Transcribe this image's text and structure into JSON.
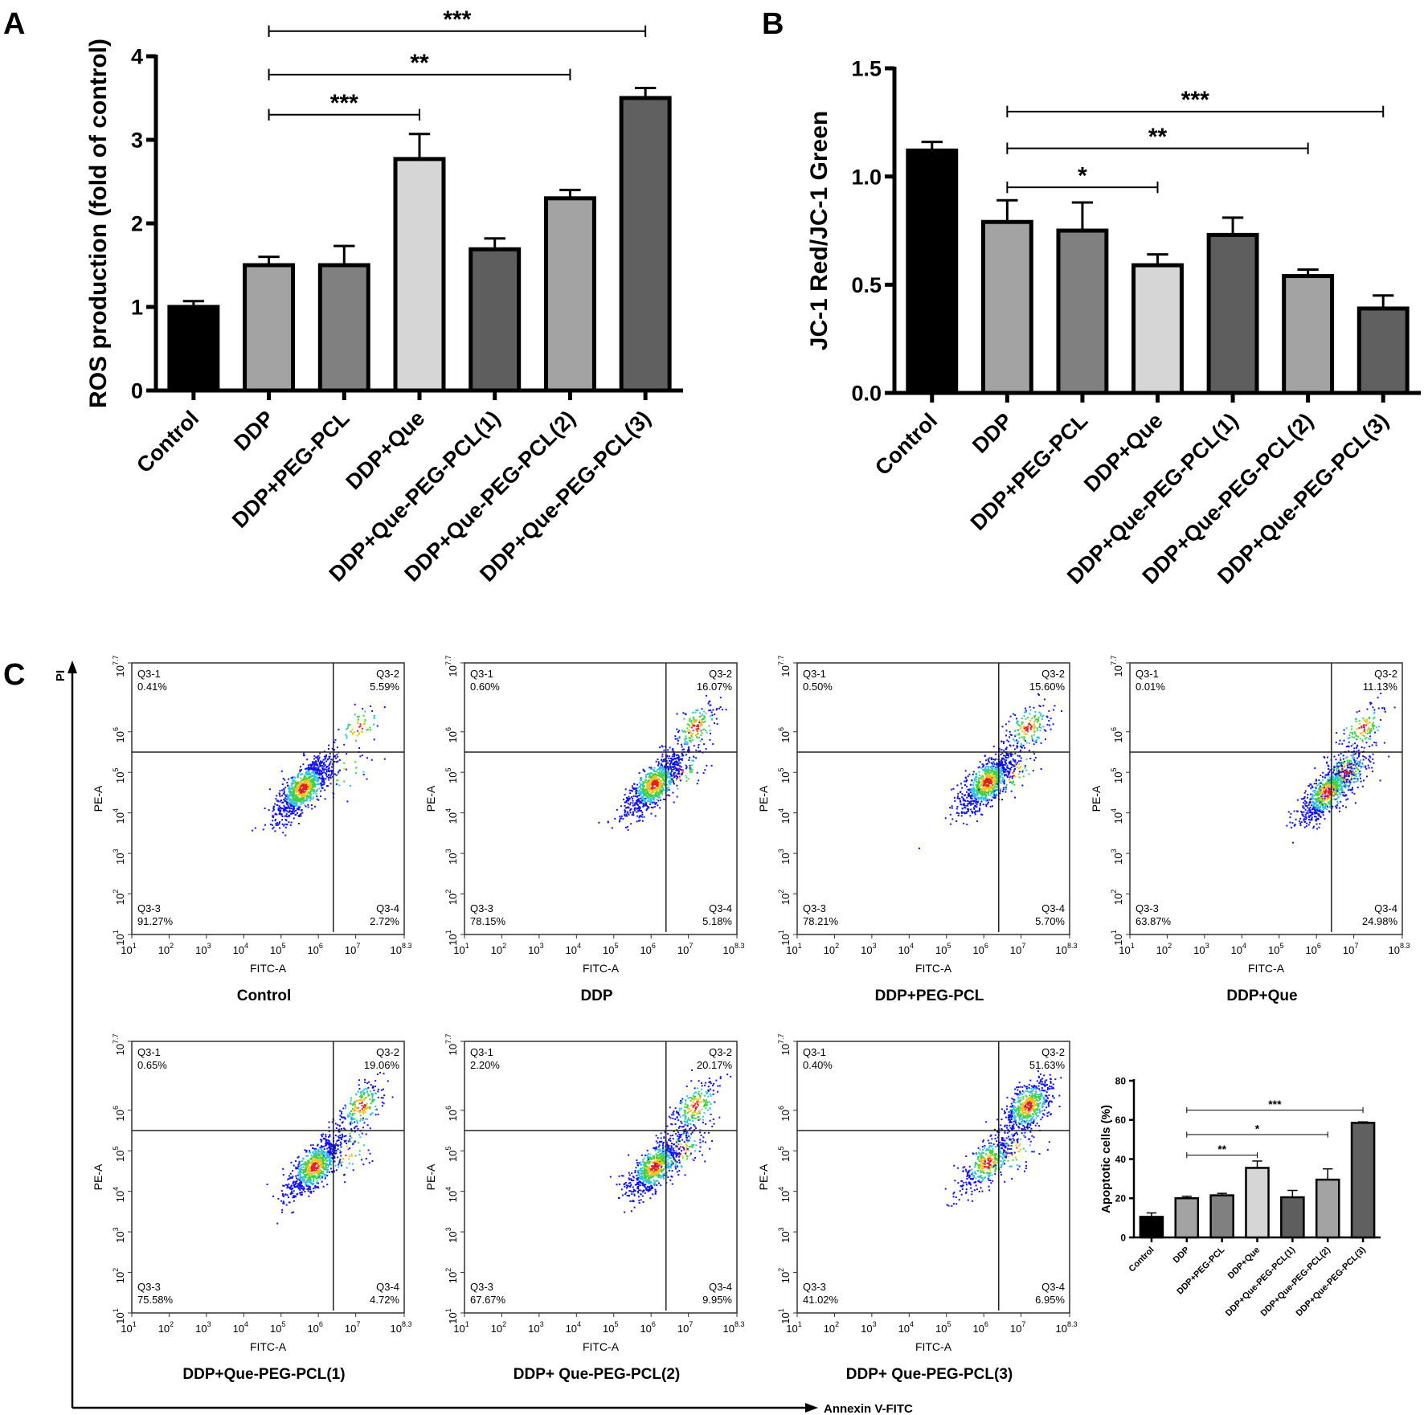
{
  "panel_labels": {
    "a": "A",
    "b": "B",
    "c": "C"
  },
  "bar_colors": [
    "#000000",
    "#a3a3a3",
    "#808080",
    "#d6d6d6",
    "#5e5e5e",
    "#a3a3a3",
    "#606060"
  ],
  "chart_data": [
    {
      "id": "A",
      "type": "bar",
      "ylabel": "ROS production (fold of control)",
      "xlabel": "",
      "ylim": [
        0,
        4
      ],
      "yticks": [
        "0",
        "1",
        "2",
        "3",
        "4"
      ],
      "categories": [
        "Control",
        "DDP",
        "DDP+PEG-PCL",
        "DDP+Que",
        "DDP+Que-PEG-PCL(1)",
        "DDP+Que-PEG-PCL(2)",
        "DDP+Que-PEG-PCL(3)"
      ],
      "values": [
        1.0,
        1.5,
        1.5,
        2.77,
        1.69,
        2.3,
        3.5
      ],
      "errors": [
        0.07,
        0.1,
        0.23,
        0.3,
        0.13,
        0.1,
        0.12
      ],
      "significance": [
        {
          "from": 1,
          "to": 3,
          "label": "***",
          "level": 3.3
        },
        {
          "from": 1,
          "to": 5,
          "label": "**",
          "level": 3.78
        },
        {
          "from": 1,
          "to": 6,
          "label": "***",
          "level": 4.3
        }
      ]
    },
    {
      "id": "B",
      "type": "bar",
      "ylabel": "JC-1 Red/JC-1 Green",
      "xlabel": "",
      "ylim": [
        0,
        1.5
      ],
      "yticks": [
        "0.0",
        "0.5",
        "1.0",
        "1.5"
      ],
      "categories": [
        "Control",
        "DDP",
        "DDP+PEG-PCL",
        "DDP+Que",
        "DDP+Que-PEG-PCL(1)",
        "DDP+Que-PEG-PCL(2)",
        "DDP+Que-PEG-PCL(3)"
      ],
      "values": [
        1.12,
        0.79,
        0.75,
        0.59,
        0.73,
        0.54,
        0.39
      ],
      "errors": [
        0.04,
        0.1,
        0.13,
        0.05,
        0.08,
        0.03,
        0.06
      ],
      "significance": [
        {
          "from": 1,
          "to": 3,
          "label": "*",
          "level": 0.95
        },
        {
          "from": 1,
          "to": 5,
          "label": "**",
          "level": 1.13
        },
        {
          "from": 1,
          "to": 6,
          "label": "***",
          "level": 1.3
        }
      ]
    },
    {
      "id": "C-inset",
      "type": "bar",
      "ylabel": "Apoptotic cells (%)",
      "xlabel": "",
      "ylim": [
        0,
        80
      ],
      "yticks": [
        "0",
        "20",
        "40",
        "60",
        "80"
      ],
      "categories": [
        "Control",
        "DDP",
        "DDP+PEG-PCL",
        "DDP+Que",
        "DDP+Que-PEG-PCL(1)",
        "DDP+Que-PEG-PCL(2)",
        "DDP+Que-PEG-PCL(3)"
      ],
      "values": [
        10.5,
        20.0,
        21.5,
        35.5,
        20.5,
        29.5,
        58.5
      ],
      "errors": [
        2.0,
        1.0,
        1.0,
        3.5,
        3.5,
        5.5,
        0.5
      ],
      "significance": [
        {
          "from": 1,
          "to": 3,
          "label": "**",
          "level": 42
        },
        {
          "from": 1,
          "to": 5,
          "label": "*",
          "level": 52.5
        },
        {
          "from": 1,
          "to": 6,
          "label": "***",
          "level": 65
        }
      ]
    },
    {
      "id": "C-flow",
      "type": "scatter",
      "xlabel": "FITC-A",
      "ylabel": "PE-A",
      "x_axis_label": "Annexin V-FITC",
      "y_axis_label": "PI",
      "xlim_log10": [
        1,
        8.3
      ],
      "ylim_log10": [
        1,
        7.7
      ],
      "x_tick_exponents": [
        "1",
        "2",
        "3",
        "4",
        "5",
        "6",
        "7",
        "8.3"
      ],
      "y_tick_exponents": [
        "1",
        "2",
        "3",
        "4",
        "5",
        "6",
        "7.7"
      ],
      "tick_base": "10",
      "gate_log10": {
        "x": 6.4,
        "y": 5.5
      },
      "quadrant_names": [
        "Q3-1",
        "Q3-2",
        "Q3-3",
        "Q3-4"
      ],
      "plots": [
        {
          "title": "Control",
          "q1": "0.41%",
          "q2": "5.59%",
          "q3": "91.27%",
          "q4": "2.72%"
        },
        {
          "title": "DDP",
          "q1": "0.60%",
          "q2": "16.07%",
          "q3": "78.15%",
          "q4": "5.18%"
        },
        {
          "title": "DDP+PEG-PCL",
          "q1": "0.50%",
          "q2": "15.60%",
          "q3": "78.21%",
          "q4": "5.70%"
        },
        {
          "title": "DDP+Que",
          "q1": "0.01%",
          "q2": "11.13%",
          "q3": "63.87%",
          "q4": "24.98%"
        },
        {
          "title": "DDP+Que-PEG-PCL(1)",
          "q1": "0.65%",
          "q2": "19.06%",
          "q3": "75.58%",
          "q4": "4.72%"
        },
        {
          "title": "DDP+ Que-PEG-PCL(2)",
          "q1": "2.20%",
          "q2": "20.17%",
          "q3": "67.67%",
          "q4": "9.95%"
        },
        {
          "title": "DDP+ Que-PEG-PCL(3)",
          "q1": "0.40%",
          "q2": "51.63%",
          "q3": "41.02%",
          "q4": "6.95%"
        }
      ]
    }
  ]
}
